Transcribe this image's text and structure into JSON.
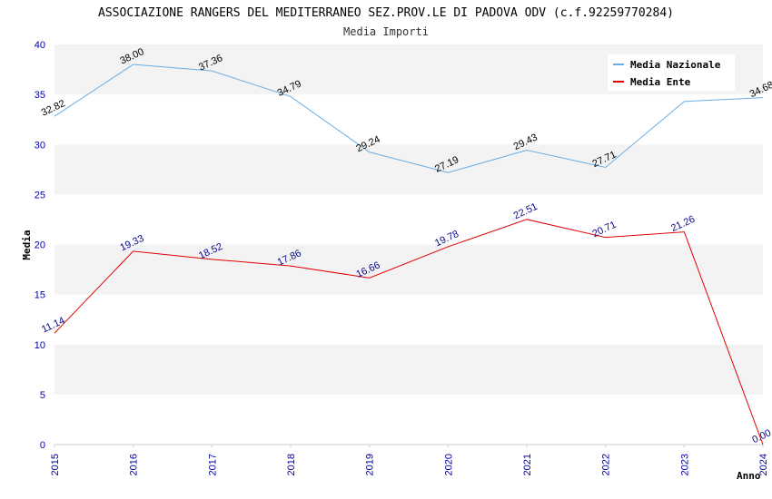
{
  "chart_data": {
    "type": "line",
    "title": "ASSOCIAZIONE RANGERS DEL MEDITERRANEO SEZ.PROV.LE DI PADOVA ODV (c.f.92259770284)",
    "subtitle": "Media Importi",
    "xlabel": "Anno",
    "ylabel": "Media",
    "ylim": [
      0,
      40
    ],
    "yticks": [
      "0",
      "5",
      "10",
      "15",
      "20",
      "25",
      "30",
      "35",
      "40"
    ],
    "categories": [
      "2015",
      "2016",
      "2017",
      "2018",
      "2019",
      "2020",
      "2021",
      "2022",
      "2023",
      "2024"
    ],
    "legend_position": "top-right",
    "grid": true,
    "series": [
      {
        "name": "Media Nazionale",
        "color": "#6aaee6",
        "values": [
          32.82,
          38.0,
          37.36,
          34.79,
          29.24,
          27.19,
          29.43,
          27.71,
          34.3,
          34.68
        ],
        "labels": [
          "32.82",
          "38.00",
          "37.36",
          "34.79",
          "29.24",
          "27.19",
          "29.43",
          "27.71",
          "",
          "34.68"
        ]
      },
      {
        "name": "Media Ente",
        "color": "#e00000",
        "values": [
          11.14,
          19.33,
          18.52,
          17.86,
          16.66,
          19.78,
          22.51,
          20.71,
          21.26,
          0.0
        ],
        "labels": [
          "11.14",
          "19.33",
          "18.52",
          "17.86",
          "16.66",
          "19.78",
          "22.51",
          "20.71",
          "21.26",
          "0.00"
        ]
      }
    ]
  }
}
